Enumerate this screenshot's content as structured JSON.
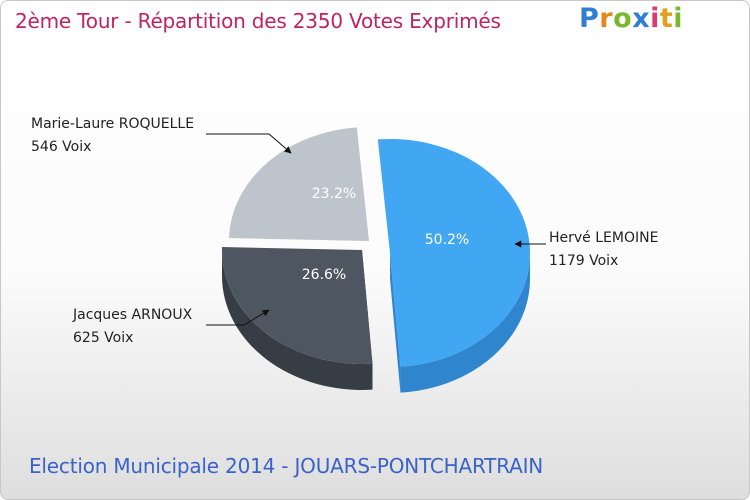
{
  "header": {
    "title": "2ème Tour - Répartition des 2350 Votes Exprimés",
    "logo_text": "Proxiti"
  },
  "footer": {
    "subtitle": "Election Municipale 2014 - JOUARS-PONTCHARTRAIN"
  },
  "colors": {
    "title": "#c0245e",
    "subtitle": "#3a63c8"
  },
  "chart_data": {
    "type": "pie",
    "title": "2ème Tour - Répartition des 2350 Votes Exprimés",
    "subtitle": "Election Municipale 2014 - JOUARS-PONTCHARTRAIN",
    "total_votes": 2350,
    "slices": [
      {
        "name": "Hervé LEMOINE",
        "votes": 1179,
        "votes_label": "1179 Voix",
        "percent": 50.2,
        "percent_label": "50.2%",
        "color": "#42a7f2",
        "side_color": "#2f86cf"
      },
      {
        "name": "Jacques ARNOUX",
        "votes": 625,
        "votes_label": "625 Voix",
        "percent": 26.6,
        "percent_label": "26.6%",
        "color": "#4e5761",
        "side_color": "#363d45"
      },
      {
        "name": "Marie-Laure ROQUELLE",
        "votes": 546,
        "votes_label": "546 Voix",
        "percent": 23.2,
        "percent_label": "23.2%",
        "color": "#bec4cb",
        "side_color": "#9aa1a9"
      }
    ]
  }
}
